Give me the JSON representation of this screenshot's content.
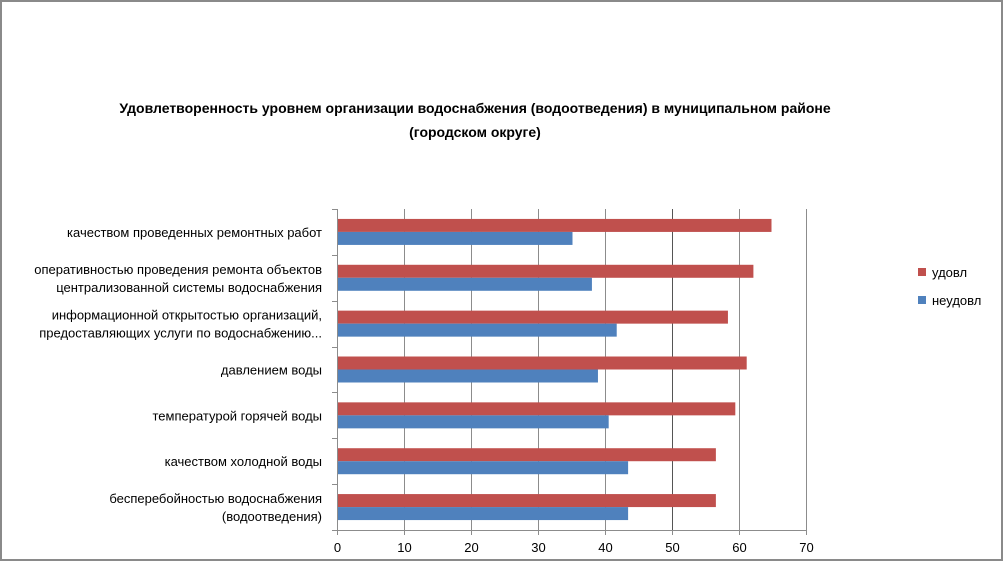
{
  "chart_data": {
    "type": "bar",
    "orientation": "horizontal",
    "title_lines": [
      "Удовлетворенность уровнем организации водоснабжения (водоотведения) в муниципальном районе",
      "(городском округе)"
    ],
    "categories": [
      [
        "качеством  проведенных  ремонтных работ"
      ],
      [
        "оперативностью  проведения  ремонта объектов",
        "централизованной системы водоснабжения"
      ],
      [
        "информационной открытостью организаций,",
        "предоставляющих услуги по водоснабжению..."
      ],
      [
        "давлением  воды"
      ],
      [
        "температурой  горячей воды"
      ],
      [
        "качеством  холодной воды"
      ],
      [
        "бесперебойностью  водоснабжения",
        "(водоотведения)"
      ]
    ],
    "series": [
      {
        "name": "удовл",
        "color": "#c0504d",
        "values": [
          64.7,
          62.0,
          58.2,
          61.0,
          59.3,
          56.4,
          56.4
        ]
      },
      {
        "name": "неудовл",
        "color": "#4f81bd",
        "values": [
          35.0,
          37.9,
          41.6,
          38.8,
          40.4,
          43.3,
          43.3
        ]
      }
    ],
    "xlim": [
      0,
      70
    ],
    "xticks": [
      "0",
      "10",
      "20",
      "30",
      "40",
      "50",
      "60",
      "70"
    ],
    "grid": true,
    "legend": "right"
  }
}
